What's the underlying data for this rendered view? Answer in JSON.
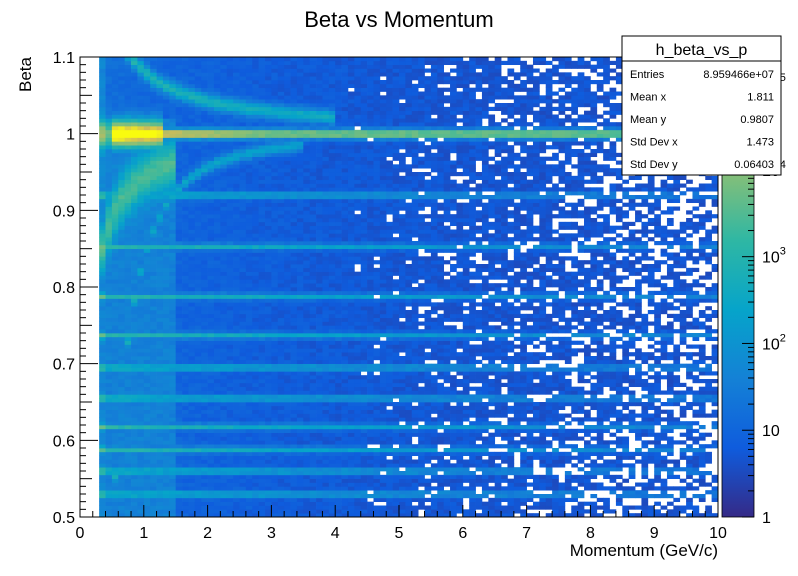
{
  "chart_data": {
    "type": "heatmap",
    "title": "Beta vs Momentum",
    "xlabel": "Momentum (GeV/c)",
    "ylabel": "Beta",
    "xlim": [
      0,
      10
    ],
    "ylim": [
      0.5,
      1.1
    ],
    "x_ticks": [
      "0",
      "1",
      "2",
      "3",
      "4",
      "5",
      "6",
      "7",
      "8",
      "9",
      "10"
    ],
    "y_ticks": [
      "0.5",
      "0.6",
      "0.7",
      "0.8",
      "0.9",
      "1",
      "1.1"
    ],
    "z_scale": "log",
    "z_ticks": [
      {
        "value": 1,
        "label": "1"
      },
      {
        "value": 10,
        "label": "10"
      },
      {
        "value": 100,
        "label": "10",
        "exp": "2"
      },
      {
        "value": 1000,
        "label": "10",
        "exp": "3"
      },
      {
        "value": 10000,
        "label": "10",
        "exp": "4"
      },
      {
        "value": 100000,
        "label": "10",
        "exp": "5"
      }
    ],
    "colormap": "parula",
    "bands": [
      {
        "beta": 1.0,
        "kind": "main"
      },
      {
        "beta": 0.92
      },
      {
        "beta": 0.853
      },
      {
        "beta": 0.788
      },
      {
        "beta": 0.737
      },
      {
        "beta": 0.695
      },
      {
        "beta": 0.655
      },
      {
        "beta": 0.618
      },
      {
        "beta": 0.588
      },
      {
        "beta": 0.56
      },
      {
        "beta": 0.53
      }
    ],
    "stats_box": {
      "name": "h_beta_vs_p",
      "rows": [
        {
          "label": "Entries",
          "value": "8.959466e+07"
        },
        {
          "label": "Mean x",
          "value": "1.811"
        },
        {
          "label": "Mean y",
          "value": "0.9807"
        },
        {
          "label": "Std Dev x",
          "value": "1.473"
        },
        {
          "label": "Std Dev y",
          "value": "0.06403"
        }
      ]
    }
  }
}
